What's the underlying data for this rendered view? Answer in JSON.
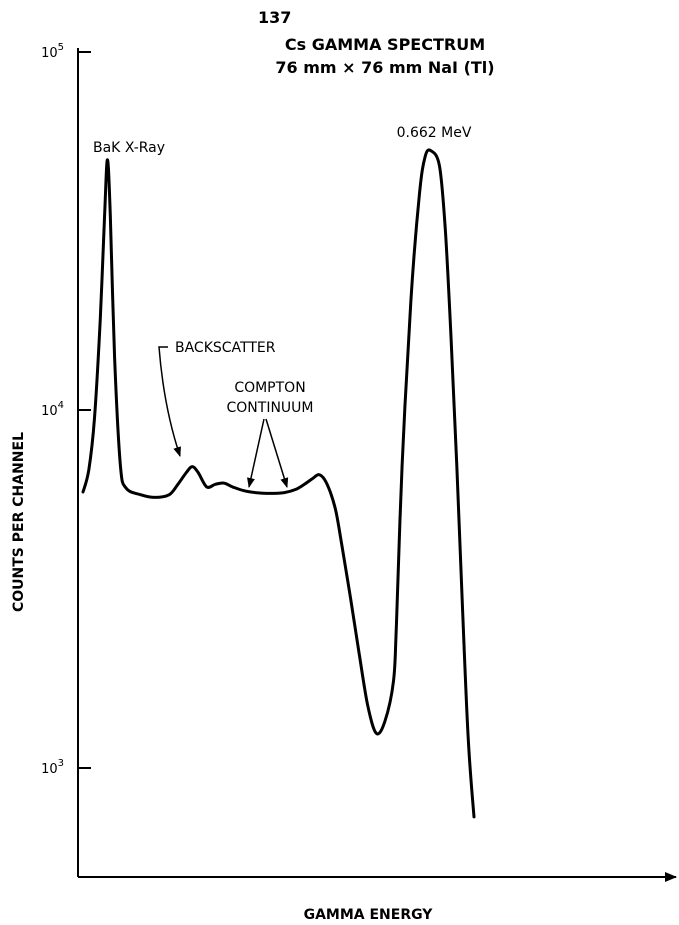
{
  "chart_data": {
    "type": "line",
    "title": {
      "isotope_mass": "137",
      "line1": "Cs GAMMA SPECTRUM",
      "line2": "76 mm × 76 mm NaI (Tl)"
    },
    "xlabel": "GAMMA ENERGY",
    "ylabel": "COUNTS PER CHANNEL",
    "y_scale": "log",
    "ylim": [
      500,
      100000
    ],
    "x_ticks": [],
    "y_ticks": [
      {
        "value": 100000,
        "base": "10",
        "exp": "5"
      },
      {
        "value": 10000,
        "base": "10",
        "exp": "4"
      },
      {
        "value": 1000,
        "base": "10",
        "exp": "3"
      }
    ],
    "grid": false,
    "legend": "none",
    "line_color": "#000000",
    "series": [
      {
        "points": [
          [
            0,
            5900
          ],
          [
            2,
            6800
          ],
          [
            4,
            9500
          ],
          [
            6,
            18000
          ],
          [
            7.5,
            35000
          ],
          [
            8.5,
            50000
          ],
          [
            9.5,
            35000
          ],
          [
            11,
            14000
          ],
          [
            13,
            7000
          ],
          [
            15,
            6050
          ],
          [
            20,
            5800
          ],
          [
            25,
            5700
          ],
          [
            30,
            5800
          ],
          [
            33,
            6200
          ],
          [
            36,
            6700
          ],
          [
            38,
            6950
          ],
          [
            40,
            6700
          ],
          [
            43,
            6100
          ],
          [
            46,
            6200
          ],
          [
            49,
            6250
          ],
          [
            52,
            6100
          ],
          [
            56,
            5950
          ],
          [
            60,
            5880
          ],
          [
            65,
            5850
          ],
          [
            70,
            5880
          ],
          [
            74,
            6000
          ],
          [
            77,
            6200
          ],
          [
            80,
            6450
          ],
          [
            82,
            6600
          ],
          [
            84,
            6400
          ],
          [
            86,
            5900
          ],
          [
            88,
            5200
          ],
          [
            90,
            4200
          ],
          [
            93,
            3000
          ],
          [
            96,
            2100
          ],
          [
            99,
            1500
          ],
          [
            102,
            1250
          ],
          [
            105,
            1350
          ],
          [
            108,
            1750
          ],
          [
            109,
            2500
          ],
          [
            111,
            7000
          ],
          [
            114,
            20000
          ],
          [
            117,
            40000
          ],
          [
            119,
            51000
          ],
          [
            121,
            53000
          ],
          [
            124,
            48000
          ],
          [
            126,
            32000
          ],
          [
            128,
            16000
          ],
          [
            130,
            7000
          ],
          [
            132,
            2800
          ],
          [
            134,
            1200
          ],
          [
            136,
            730
          ]
        ]
      }
    ],
    "annotations": {
      "bak": {
        "text": "BaK X-Ray"
      },
      "photopeak": {
        "text": "0.662 MeV"
      },
      "backscatter": {
        "text": "BACKSCATTER"
      },
      "compton_line1": "COMPTON",
      "compton_line2": "CONTINUUM"
    }
  }
}
